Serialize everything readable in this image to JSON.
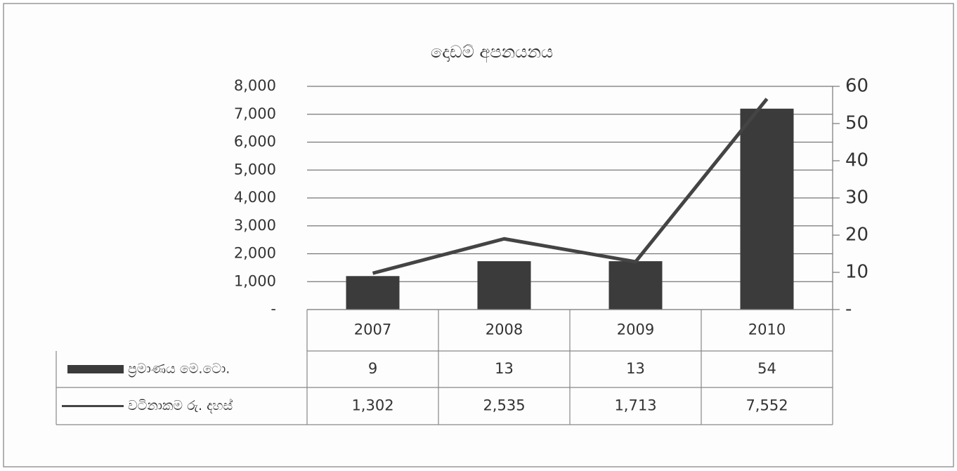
{
  "chart_data": {
    "type": "bar-line",
    "title": "දොඩම් අපනයනය",
    "categories": [
      "2007",
      "2008",
      "2009",
      "2010"
    ],
    "series": [
      {
        "name": "ප්‍රමාණය මෙ.ටො.",
        "type": "bar",
        "axis": "y2",
        "color": "#3b3b3b",
        "values": [
          9,
          13,
          13,
          54
        ]
      },
      {
        "name": "වටිනාකම රු. දහස්",
        "type": "line",
        "axis": "y",
        "color": "#444444",
        "values": [
          1302,
          2535,
          1713,
          7552
        ],
        "value_labels": [
          "1,302",
          "2,535",
          "1,713",
          "7,552"
        ]
      }
    ],
    "ylim": [
      0,
      8000
    ],
    "yticks": [
      {
        "value": 0,
        "label": "-"
      },
      {
        "value": 1000,
        "label": "1,000"
      },
      {
        "value": 2000,
        "label": "2,000"
      },
      {
        "value": 3000,
        "label": "3,000"
      },
      {
        "value": 4000,
        "label": "4,000"
      },
      {
        "value": 5000,
        "label": "5,000"
      },
      {
        "value": 6000,
        "label": "6,000"
      },
      {
        "value": 7000,
        "label": "7,000"
      },
      {
        "value": 8000,
        "label": "8,000"
      }
    ],
    "y2lim": [
      0,
      60
    ],
    "y2ticks": [
      {
        "value": 0,
        "label": "-"
      },
      10,
      20,
      30,
      40,
      50,
      60
    ],
    "grid": true,
    "data_table": true
  }
}
